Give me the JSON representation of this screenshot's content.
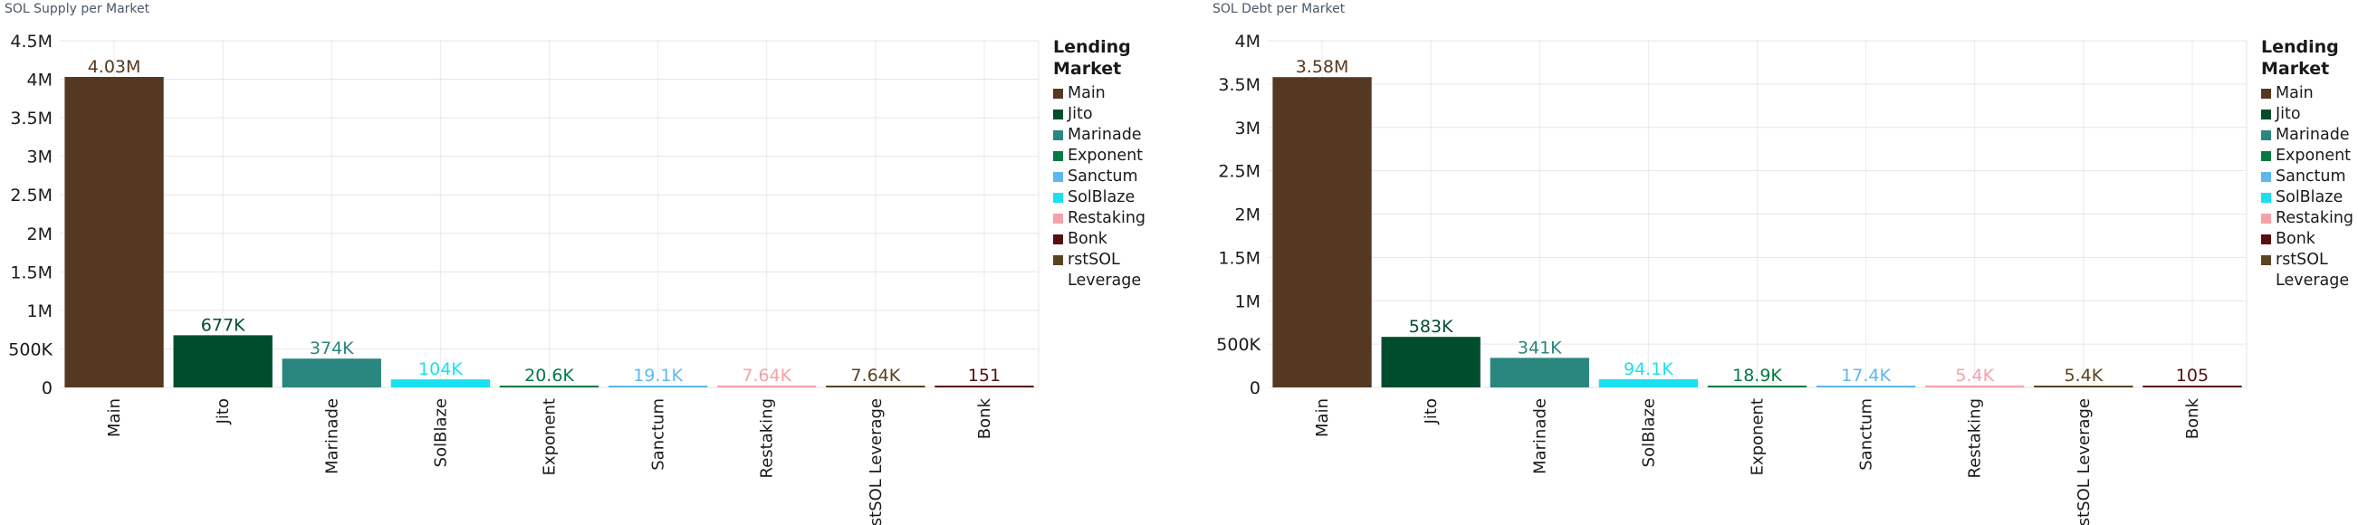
{
  "colors": {
    "Main": "#543821",
    "Jito": "#004d2e",
    "Marinade": "#2a8780",
    "Exponent": "#047a43",
    "Sanctum": "#5fb7ef",
    "SolBlaze": "#1ae0f0",
    "Restaking": "#f4a1a9",
    "Bonk": "#5a0e0e",
    "rstSOL Leverage": "#5a4321"
  },
  "legend": {
    "title": "Lending Market",
    "items": [
      "Main",
      "Jito",
      "Marinade",
      "Exponent",
      "Sanctum",
      "SolBlaze",
      "Restaking",
      "Bonk",
      "rstSOL Leverage"
    ]
  },
  "chart_data": [
    {
      "type": "bar",
      "title": "SOL Supply per Market",
      "categories": [
        "Main",
        "Jito",
        "Marinade",
        "SolBlaze",
        "Exponent",
        "Sanctum",
        "Restaking",
        "rstSOL Leverage",
        "Bonk"
      ],
      "values": [
        4030000,
        677000,
        374000,
        104000,
        20600,
        19100,
        7640,
        7640,
        151
      ],
      "data_labels": [
        "4.03M",
        "677K",
        "374K",
        "104K",
        "20.6K",
        "19.1K",
        "7.64K",
        "7.64K",
        "151"
      ],
      "ylim": [
        0,
        4500000
      ],
      "yticks": [
        0,
        500000,
        1000000,
        1500000,
        2000000,
        2500000,
        3000000,
        3500000,
        4000000,
        4500000
      ],
      "ytick_labels": [
        "0",
        "500K",
        "1M",
        "1.5M",
        "2M",
        "2.5M",
        "3M",
        "3.5M",
        "4M",
        "4.5M"
      ],
      "grid": true,
      "legend_position": "right"
    },
    {
      "type": "bar",
      "title": "SOL Debt per Market",
      "categories": [
        "Main",
        "Jito",
        "Marinade",
        "SolBlaze",
        "Exponent",
        "Sanctum",
        "Restaking",
        "rstSOL Leverage",
        "Bonk"
      ],
      "values": [
        3580000,
        583000,
        341000,
        94100,
        18900,
        17400,
        5400,
        5400,
        105
      ],
      "data_labels": [
        "3.58M",
        "583K",
        "341K",
        "94.1K",
        "18.9K",
        "17.4K",
        "5.4K",
        "5.4K",
        "105"
      ],
      "ylim": [
        0,
        4000000
      ],
      "yticks": [
        0,
        500000,
        1000000,
        1500000,
        2000000,
        2500000,
        3000000,
        3500000,
        4000000
      ],
      "ytick_labels": [
        "0",
        "500K",
        "1M",
        "1.5M",
        "2M",
        "2.5M",
        "3M",
        "3.5M",
        "4M"
      ],
      "grid": true,
      "legend_position": "right"
    }
  ]
}
